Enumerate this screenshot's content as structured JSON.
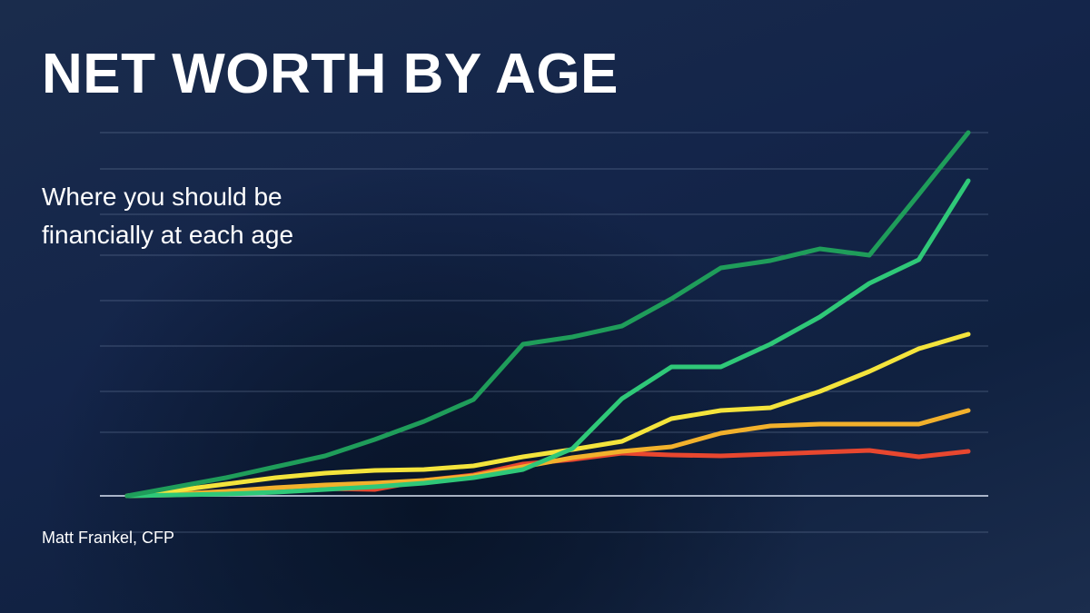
{
  "chart_data": {
    "type": "line",
    "title": "NET WORTH BY AGE",
    "subtitle": "Where you should be financially at each age",
    "author": "Matt Frankel, CFP",
    "x": [
      0,
      1,
      2,
      3,
      4,
      5,
      6,
      7,
      8,
      9,
      10,
      11,
      12,
      13,
      14,
      15,
      16,
      17
    ],
    "xlim": [
      0,
      17
    ],
    "ylim": [
      -0.8,
      8.0
    ],
    "yticks": [
      -0.8,
      0,
      1.4,
      2.3,
      3.3,
      4.3,
      5.3,
      6.2,
      7.2,
      8.0
    ],
    "grid": true,
    "series": [
      {
        "color": "#e8472f",
        "values": [
          0,
          0.02,
          0.06,
          0.12,
          0.16,
          0.14,
          0.34,
          0.46,
          0.7,
          0.8,
          0.94,
          0.9,
          0.88,
          0.92,
          0.96,
          1.0,
          0.86,
          0.98
        ]
      },
      {
        "color": "#f2b12c",
        "values": [
          0,
          0.04,
          0.1,
          0.18,
          0.24,
          0.28,
          0.34,
          0.44,
          0.64,
          0.84,
          0.98,
          1.08,
          1.38,
          1.54,
          1.58,
          1.58,
          1.58,
          1.88
        ]
      },
      {
        "color": "#f4e43c",
        "values": [
          0,
          0.12,
          0.26,
          0.4,
          0.5,
          0.56,
          0.58,
          0.66,
          0.86,
          1.02,
          1.2,
          1.7,
          1.88,
          1.94,
          2.3,
          2.74,
          3.24,
          3.56
        ]
      },
      {
        "color": "#2fc878",
        "values": [
          0,
          0.02,
          0.04,
          0.08,
          0.14,
          0.2,
          0.28,
          0.4,
          0.58,
          1.04,
          2.14,
          2.84,
          2.84,
          3.34,
          3.94,
          4.68,
          5.2,
          6.94
        ]
      },
      {
        "color": "#1f9d5a",
        "values": [
          0,
          0.2,
          0.4,
          0.64,
          0.88,
          1.24,
          1.64,
          2.12,
          3.34,
          3.5,
          3.74,
          4.34,
          5.02,
          5.18,
          5.44,
          5.3,
          6.64,
          8.0
        ]
      }
    ]
  }
}
